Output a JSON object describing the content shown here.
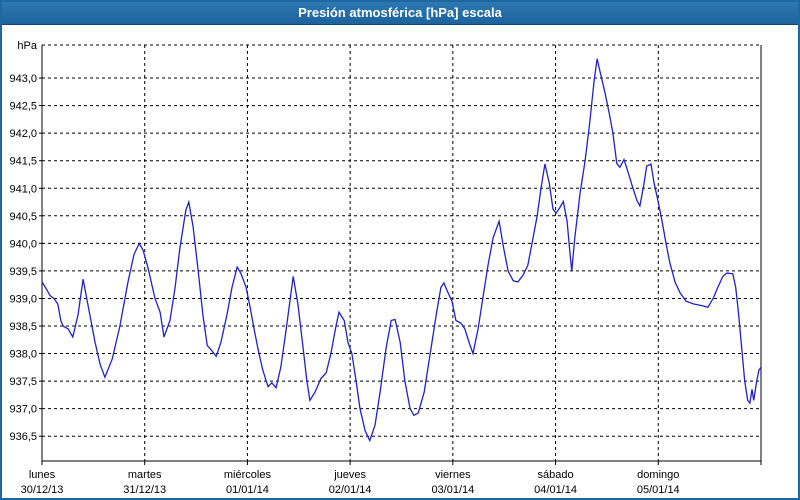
{
  "window": {
    "title": "Presión atmosférica [hPa] escala"
  },
  "chart_data": {
    "type": "line",
    "title": "Presión atmosférica [hPa] escala",
    "unit_label": "hPa",
    "grid": "dashed",
    "legend": "none",
    "colors": {
      "titlebar": "#2069a5",
      "window_border": "#1e679f",
      "grid": "#000000",
      "background": "#ffffff",
      "line": "#2121c8",
      "label_text": "#000000"
    },
    "y_axis": {
      "ylim": [
        936.05,
        943.6
      ],
      "tick_values": [
        943.0,
        942.5,
        942.0,
        941.5,
        941.0,
        940.5,
        940.0,
        939.5,
        939.0,
        938.5,
        938.0,
        937.5,
        937.0,
        936.5
      ],
      "tick_labels": [
        "943,0",
        "942,5",
        "942,0",
        "941,5",
        "941,0",
        "940,5",
        "940,0",
        "939,5",
        "939,0",
        "938,5",
        "938,0",
        "937,5",
        "937,0",
        "936,5"
      ]
    },
    "x_axis": {
      "hours_span": 168,
      "hours_per_day": 24,
      "days": [
        {
          "name": "lunes",
          "date": "30/12/13"
        },
        {
          "name": "martes",
          "date": "31/12/13"
        },
        {
          "name": "miércoles",
          "date": "01/01/14"
        },
        {
          "name": "jueves",
          "date": "02/01/14"
        },
        {
          "name": "viernes",
          "date": "03/01/14"
        },
        {
          "name": "sábado",
          "date": "04/01/14"
        },
        {
          "name": "domingo",
          "date": "05/01/14"
        }
      ]
    },
    "series": [
      {
        "name": "Presión atmosférica",
        "color": "#2121c8",
        "points_hours_hpa": [
          [
            0,
            939.3
          ],
          [
            1.2,
            939.15
          ],
          [
            1.9,
            939.05
          ],
          [
            2.8,
            939.0
          ],
          [
            3.7,
            938.9
          ],
          [
            4.4,
            938.6
          ],
          [
            4.9,
            938.5
          ],
          [
            6.1,
            938.45
          ],
          [
            7.2,
            938.3
          ],
          [
            8.4,
            938.7
          ],
          [
            9.6,
            939.35
          ],
          [
            10.7,
            938.9
          ],
          [
            12.4,
            938.2
          ],
          [
            13.6,
            937.8
          ],
          [
            14.7,
            937.57
          ],
          [
            16.4,
            937.9
          ],
          [
            18.2,
            938.5
          ],
          [
            20.1,
            939.3
          ],
          [
            21.5,
            939.8
          ],
          [
            22.7,
            940.0
          ],
          [
            23.6,
            939.88
          ],
          [
            24.8,
            939.55
          ],
          [
            26.4,
            939.0
          ],
          [
            27.6,
            938.75
          ],
          [
            28.5,
            938.3
          ],
          [
            29.9,
            938.6
          ],
          [
            31.1,
            939.2
          ],
          [
            32.2,
            939.9
          ],
          [
            33.6,
            940.6
          ],
          [
            34.3,
            940.75
          ],
          [
            35.3,
            940.3
          ],
          [
            36.5,
            939.5
          ],
          [
            37.6,
            938.7
          ],
          [
            38.6,
            938.15
          ],
          [
            39.7,
            938.05
          ],
          [
            40.7,
            937.95
          ],
          [
            41.8,
            938.2
          ],
          [
            43.2,
            938.7
          ],
          [
            44.4,
            939.2
          ],
          [
            45.6,
            939.57
          ],
          [
            46.5,
            939.45
          ],
          [
            47.7,
            939.2
          ],
          [
            48.6,
            938.85
          ],
          [
            49.8,
            938.35
          ],
          [
            50.7,
            938.0
          ],
          [
            51.6,
            937.7
          ],
          [
            52.8,
            937.4
          ],
          [
            53.7,
            937.47
          ],
          [
            54.7,
            937.38
          ],
          [
            55.8,
            937.75
          ],
          [
            57.0,
            938.4
          ],
          [
            58.7,
            939.4
          ],
          [
            59.8,
            938.9
          ],
          [
            61.0,
            938.1
          ],
          [
            61.9,
            937.5
          ],
          [
            62.6,
            937.15
          ],
          [
            63.8,
            937.3
          ],
          [
            65.2,
            937.55
          ],
          [
            66.4,
            937.65
          ],
          [
            67.5,
            938.0
          ],
          [
            68.7,
            938.5
          ],
          [
            69.4,
            938.75
          ],
          [
            70.6,
            938.6
          ],
          [
            71.5,
            938.2
          ],
          [
            72.4,
            938.0
          ],
          [
            73.4,
            937.5
          ],
          [
            74.3,
            937.0
          ],
          [
            75.5,
            936.6
          ],
          [
            76.6,
            936.42
          ],
          [
            77.8,
            936.7
          ],
          [
            79.0,
            937.3
          ],
          [
            80.4,
            938.1
          ],
          [
            81.6,
            938.6
          ],
          [
            82.5,
            938.62
          ],
          [
            83.7,
            938.2
          ],
          [
            84.8,
            937.5
          ],
          [
            86.0,
            937.0
          ],
          [
            86.9,
            936.88
          ],
          [
            87.9,
            936.92
          ],
          [
            89.3,
            937.3
          ],
          [
            90.7,
            938.0
          ],
          [
            92.1,
            938.7
          ],
          [
            93.2,
            939.2
          ],
          [
            93.9,
            939.28
          ],
          [
            94.9,
            939.1
          ],
          [
            95.8,
            938.95
          ],
          [
            96.7,
            938.6
          ],
          [
            97.9,
            938.55
          ],
          [
            98.8,
            938.45
          ],
          [
            99.8,
            938.2
          ],
          [
            100.7,
            938.0
          ],
          [
            101.9,
            938.45
          ],
          [
            103.0,
            939.0
          ],
          [
            104.2,
            939.6
          ],
          [
            105.4,
            940.1
          ],
          [
            106.8,
            940.4
          ],
          [
            107.9,
            939.9
          ],
          [
            108.9,
            939.5
          ],
          [
            110.1,
            939.32
          ],
          [
            111.2,
            939.3
          ],
          [
            112.4,
            939.42
          ],
          [
            113.5,
            939.6
          ],
          [
            114.5,
            940.0
          ],
          [
            115.7,
            940.5
          ],
          [
            116.6,
            941.0
          ],
          [
            117.5,
            941.44
          ],
          [
            118.5,
            941.1
          ],
          [
            119.4,
            940.62
          ],
          [
            120.1,
            940.55
          ],
          [
            121.0,
            940.65
          ],
          [
            121.8,
            940.76
          ],
          [
            122.7,
            940.4
          ],
          [
            123.4,
            939.8
          ],
          [
            123.8,
            939.5
          ],
          [
            124.5,
            940.1
          ],
          [
            125.7,
            940.9
          ],
          [
            126.9,
            941.5
          ],
          [
            128.0,
            942.2
          ],
          [
            129.0,
            942.95
          ],
          [
            129.7,
            943.35
          ],
          [
            130.6,
            943.05
          ],
          [
            131.5,
            942.75
          ],
          [
            132.7,
            942.3
          ],
          [
            133.4,
            942.0
          ],
          [
            134.3,
            941.45
          ],
          [
            135.0,
            941.38
          ],
          [
            136.0,
            941.52
          ],
          [
            136.9,
            941.3
          ],
          [
            138.1,
            941.0
          ],
          [
            139.0,
            940.78
          ],
          [
            139.7,
            940.68
          ],
          [
            140.6,
            941.05
          ],
          [
            141.3,
            941.4
          ],
          [
            142.3,
            941.44
          ],
          [
            143.0,
            941.1
          ],
          [
            143.9,
            940.78
          ],
          [
            144.9,
            940.4
          ],
          [
            145.8,
            940.0
          ],
          [
            146.7,
            939.65
          ],
          [
            147.9,
            939.3
          ],
          [
            149.1,
            939.1
          ],
          [
            150.5,
            938.95
          ],
          [
            152.3,
            938.9
          ],
          [
            154.2,
            938.87
          ],
          [
            155.6,
            938.84
          ],
          [
            156.8,
            939.0
          ],
          [
            157.9,
            939.2
          ],
          [
            159.1,
            939.4
          ],
          [
            160.0,
            939.46
          ],
          [
            161.4,
            939.45
          ],
          [
            162.1,
            939.2
          ],
          [
            162.8,
            938.7
          ],
          [
            163.5,
            938.1
          ],
          [
            164.2,
            937.5
          ],
          [
            164.9,
            937.15
          ],
          [
            165.4,
            937.1
          ],
          [
            165.9,
            937.35
          ],
          [
            166.3,
            937.15
          ],
          [
            167.0,
            937.5
          ],
          [
            167.5,
            937.7
          ],
          [
            168,
            937.75
          ]
        ]
      }
    ]
  }
}
